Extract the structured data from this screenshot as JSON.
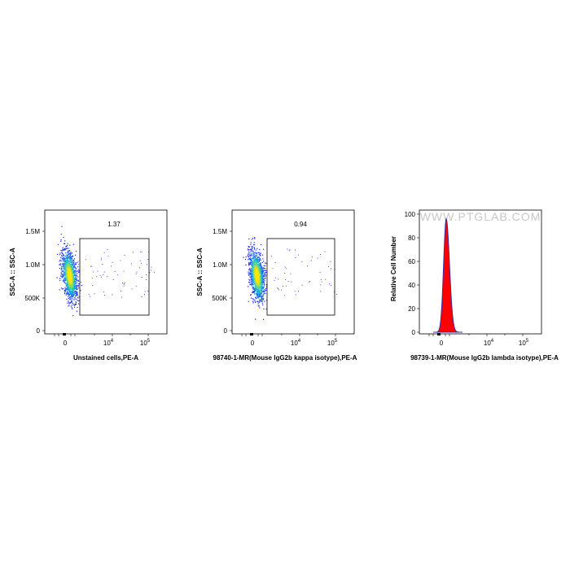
{
  "chart_data": [
    {
      "type": "scatter",
      "title": "",
      "xlabel": "Unstained cells,PE-A",
      "ylabel": "SSC-A :: SSC-A",
      "x_scale": "biexponential",
      "x_tick_labels": [
        "0",
        "10^4",
        "10^5"
      ],
      "y_tick_labels": [
        "0",
        "500K",
        "1.0M",
        "1.5M"
      ],
      "ylim": [
        0,
        1800000
      ],
      "gate": {
        "label": "1.37",
        "x_range": [
          1200,
          200000
        ],
        "y_range": [
          220000,
          1400000
        ]
      },
      "population": {
        "center_x": 0,
        "center_y": 800000,
        "y_spread": [
          500000,
          1200000
        ]
      }
    },
    {
      "type": "scatter",
      "title": "",
      "xlabel": "98740-1-MR(Mouse IgG2b kappa isotype),PE-A",
      "ylabel": "SSC-A :: SSC-A",
      "x_scale": "biexponential",
      "x_tick_labels": [
        "0",
        "10^4",
        "10^5"
      ],
      "y_tick_labels": [
        "0",
        "500K",
        "1.0M",
        "1.5M"
      ],
      "ylim": [
        0,
        1800000
      ],
      "gate": {
        "label": "0.94",
        "x_range": [
          1200,
          200000
        ],
        "y_range": [
          220000,
          1400000
        ]
      },
      "population": {
        "center_x": 0,
        "center_y": 800000,
        "y_spread": [
          500000,
          1200000
        ]
      }
    },
    {
      "type": "area",
      "title": "",
      "xlabel": "98739-1-MR(Mouse IgG2b lambda isotype),PE-A",
      "ylabel": "Relative Cell Number",
      "x_scale": "biexponential",
      "x_tick_labels": [
        "0",
        "10^4",
        "10^5"
      ],
      "y_tick_labels": [
        "0",
        "20",
        "40",
        "60",
        "80",
        "100"
      ],
      "ylim": [
        0,
        100
      ],
      "series": [
        {
          "peak_x": 0,
          "peak_y": 96,
          "color": "#ff0000",
          "outline": "#3a2fa0"
        }
      ]
    }
  ],
  "watermark": "WWW.PTGLAB.COM",
  "colors": {
    "density_low": "#1a1aff",
    "density_mid": "#19c8c8",
    "density_high": "#ffe600",
    "gate": "#000000",
    "histogram_fill": "#ff0000",
    "histogram_line": "#3a2fa0"
  }
}
